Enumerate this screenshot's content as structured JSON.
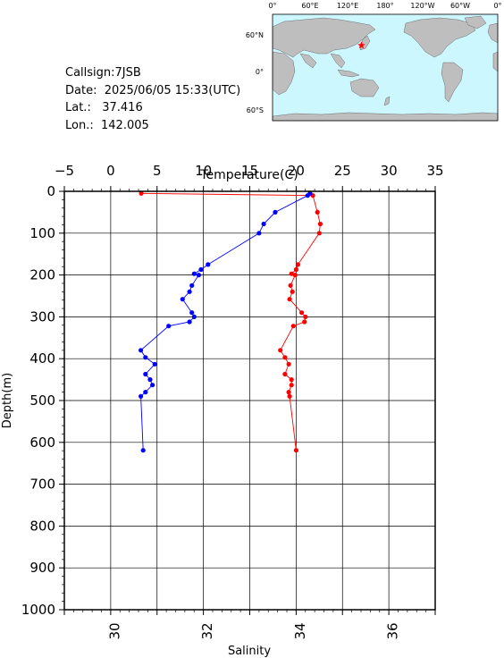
{
  "info": {
    "callsign_label": "Callsign:",
    "callsign": "7JSB",
    "date_label": "Date:",
    "date": "2025/06/05 15:33(UTC)",
    "lat_label": "Lat.:",
    "lat": "37.416",
    "lon_label": "Lon.:",
    "lon": "142.005"
  },
  "map": {
    "top_labels": [
      "0°",
      "60°E",
      "120°E",
      "180°",
      "120°W",
      "60°W",
      "0°"
    ],
    "side_labels": [
      "60°N",
      "0°",
      "60°S"
    ],
    "ocean_color": "#ccf7ff",
    "land_color": "#bebebe",
    "marker_color": "#ff0000",
    "station": {
      "lon": 142.005,
      "lat": 37.416
    }
  },
  "chart_data": {
    "type": "line",
    "top_axis_label": "Temperature(C)",
    "top_ticks": [
      "-5",
      "0",
      "5",
      "10",
      "15",
      "20",
      "25",
      "30",
      "35"
    ],
    "top_range": [
      -5,
      35
    ],
    "bottom_axis_label": "Salinity",
    "bottom_ticks": [
      "30",
      "32",
      "34",
      "36"
    ],
    "bottom_range": [
      29,
      37
    ],
    "y_axis_label": "Depth(m)",
    "y_ticks": [
      "0",
      "100",
      "200",
      "300",
      "400",
      "500",
      "600",
      "700",
      "800",
      "900",
      "1000"
    ],
    "y_range": [
      0,
      1000
    ],
    "grid": true,
    "series": [
      {
        "axis": "temperature",
        "color": "#ff0000",
        "points": [
          [
            3.3,
            5
          ],
          [
            21.8,
            10
          ],
          [
            22.3,
            50
          ],
          [
            22.6,
            78
          ],
          [
            22.5,
            100
          ],
          [
            20.2,
            175
          ],
          [
            20.0,
            187
          ],
          [
            19.5,
            197
          ],
          [
            19.9,
            200
          ],
          [
            19.4,
            225
          ],
          [
            19.6,
            240
          ],
          [
            19.3,
            258
          ],
          [
            20.6,
            290
          ],
          [
            21.0,
            300
          ],
          [
            20.9,
            312
          ],
          [
            19.7,
            322
          ],
          [
            18.3,
            380
          ],
          [
            18.8,
            397
          ],
          [
            19.2,
            413
          ],
          [
            18.8,
            437
          ],
          [
            19.5,
            450
          ],
          [
            19.5,
            463
          ],
          [
            19.2,
            480
          ],
          [
            19.3,
            490
          ],
          [
            20.0,
            619
          ]
        ]
      },
      {
        "axis": "salinity",
        "color": "#0000ff",
        "points": [
          [
            34.3,
            5
          ],
          [
            34.25,
            10
          ],
          [
            33.55,
            50
          ],
          [
            33.3,
            78
          ],
          [
            33.2,
            100
          ],
          [
            32.1,
            175
          ],
          [
            31.95,
            187
          ],
          [
            31.8,
            197
          ],
          [
            31.9,
            200
          ],
          [
            31.75,
            225
          ],
          [
            31.7,
            240
          ],
          [
            31.55,
            258
          ],
          [
            31.75,
            290
          ],
          [
            31.8,
            300
          ],
          [
            31.7,
            312
          ],
          [
            31.25,
            322
          ],
          [
            30.65,
            380
          ],
          [
            30.75,
            397
          ],
          [
            30.95,
            413
          ],
          [
            30.75,
            437
          ],
          [
            30.85,
            450
          ],
          [
            30.9,
            463
          ],
          [
            30.75,
            480
          ],
          [
            30.65,
            490
          ],
          [
            30.7,
            619
          ]
        ]
      }
    ]
  }
}
